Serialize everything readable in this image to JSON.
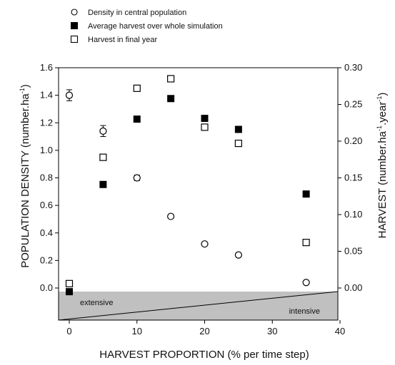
{
  "chart_data": {
    "type": "scatter",
    "x": [
      0,
      5,
      10,
      15,
      20,
      25,
      35
    ],
    "xlabel": "HARVEST PROPORTION (% per time step)",
    "xlim": [
      0,
      40
    ],
    "xticks": [
      "0",
      "10",
      "20",
      "30",
      "40"
    ],
    "ylabel_left": "POPULATION DENSITY (number.ha",
    "ylabel_left_sup": "-1",
    "ylabel_left_end": ")",
    "ylim_left": [
      0,
      1.6
    ],
    "yticks_left": [
      "0.0",
      "0.2",
      "0.4",
      "0.6",
      "0.8",
      "1.0",
      "1.2",
      "1.4",
      "1.6"
    ],
    "ylabel_right": "HARVEST (number.ha",
    "ylabel_right_sup1": "-1",
    "ylabel_right_mid": ".year",
    "ylabel_right_sup2": "-1",
    "ylabel_right_end": ")",
    "ylim_right": [
      0,
      0.3
    ],
    "yticks_right": [
      "0.00",
      "0.05",
      "0.10",
      "0.15",
      "0.20",
      "0.25",
      "0.30"
    ],
    "legend_position": "top-left",
    "series": [
      {
        "name": "Density in central population",
        "marker": "open-circle",
        "axis": "left",
        "values": [
          1.4,
          1.14,
          0.8,
          0.52,
          0.32,
          0.24,
          0.04
        ],
        "error": [
          0.04,
          0.04,
          0.02,
          0.01,
          0.01,
          0.01,
          0.0
        ]
      },
      {
        "name": "Average harvest over whole simulation",
        "marker": "filled-square",
        "axis": "right",
        "values": [
          -0.005,
          0.141,
          0.23,
          0.258,
          0.231,
          0.216,
          0.128
        ]
      },
      {
        "name": "Harvest in final year",
        "marker": "open-square",
        "axis": "right",
        "values": [
          0.006,
          0.178,
          0.272,
          0.285,
          0.219,
          0.197,
          0.062
        ]
      }
    ],
    "regions": [
      "extensive",
      "intensive"
    ],
    "region_fill": "#c0c0c0"
  }
}
